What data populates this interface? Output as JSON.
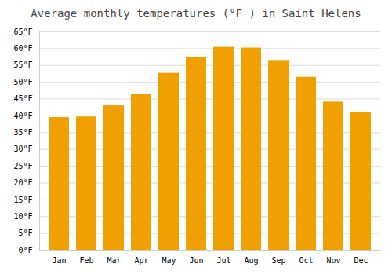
{
  "chart_data": {
    "type": "bar",
    "title": "Average monthly temperatures (°F ) in Saint Helens",
    "categories": [
      "Jan",
      "Feb",
      "Mar",
      "Apr",
      "May",
      "Jun",
      "Jul",
      "Aug",
      "Sep",
      "Oct",
      "Nov",
      "Dec"
    ],
    "values": [
      39.5,
      39.7,
      43.0,
      46.4,
      52.7,
      57.5,
      60.4,
      60.2,
      56.5,
      51.5,
      44.1,
      41.0
    ],
    "color": "#F0A000",
    "ylim": [
      0,
      65
    ],
    "yticks": [
      {
        "value": 0,
        "label": "0°F"
      },
      {
        "value": 5,
        "label": "5°F"
      },
      {
        "value": 10,
        "label": "10°F"
      },
      {
        "value": 15,
        "label": "15°F"
      },
      {
        "value": 20,
        "label": "20°F"
      },
      {
        "value": 25,
        "label": "25°F"
      },
      {
        "value": 30,
        "label": "30°F"
      },
      {
        "value": 35,
        "label": "35°F"
      },
      {
        "value": 40,
        "label": "40°F"
      },
      {
        "value": 45,
        "label": "45°F"
      },
      {
        "value": 50,
        "label": "50°F"
      },
      {
        "value": 55,
        "label": "55°F"
      },
      {
        "value": 60,
        "label": "60°F"
      },
      {
        "value": 65,
        "label": "65°F"
      }
    ],
    "grid": true
  }
}
